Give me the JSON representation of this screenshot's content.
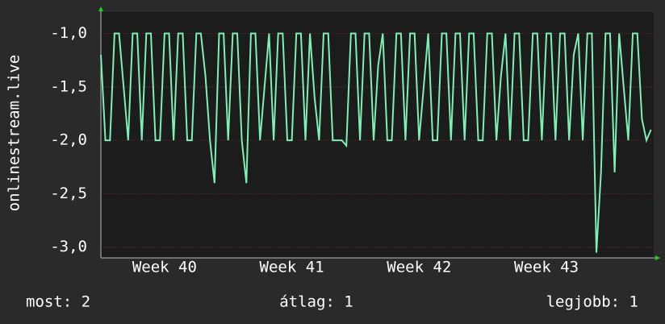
{
  "chart_data": {
    "type": "line",
    "y_label": "onlinestream.live",
    "x": [
      0,
      0.25,
      0.5,
      0.75,
      1,
      1.25,
      1.5,
      1.75,
      2,
      2.25,
      2.5,
      2.75,
      3,
      3.25,
      3.5,
      3.75,
      4,
      4.25,
      4.5,
      4.75,
      5,
      5.25,
      5.5,
      5.75,
      6,
      6.25,
      6.5,
      6.75,
      7,
      7.25,
      7.5,
      7.75,
      8,
      8.25,
      8.5,
      8.75,
      9,
      9.25,
      9.5,
      9.75,
      10,
      10.25,
      10.5,
      10.75,
      11,
      11.25,
      11.5,
      11.75,
      12,
      12.25,
      12.5,
      12.75,
      13,
      13.25,
      13.5,
      13.75,
      14,
      14.25,
      14.5,
      14.75,
      15,
      15.25,
      15.5,
      15.75,
      16,
      16.25,
      16.5,
      16.75,
      17,
      17.25,
      17.5,
      17.75,
      18,
      18.25,
      18.5,
      18.75,
      19,
      19.25,
      19.5,
      19.75,
      20,
      20.25,
      20.5,
      20.75,
      21,
      21.25,
      21.5,
      21.75,
      22,
      22.25,
      22.5,
      22.75,
      23,
      23.25,
      23.5,
      23.75,
      24,
      24.25,
      24.5,
      24.75,
      25,
      25.25,
      25.5,
      25.75,
      26,
      26.25,
      26.5,
      26.75,
      27,
      27.25,
      27.5,
      27.75,
      28,
      28.25,
      28.5,
      28.75,
      29,
      29.25,
      29.5,
      29.75,
      30,
      30.25
    ],
    "series": [
      {
        "color": "#7df0b4",
        "values": [
          -1.2,
          -2,
          -2,
          -1,
          -1,
          -1.5,
          -2,
          -1,
          -1,
          -2,
          -1,
          -1,
          -2,
          -2,
          -1,
          -1,
          -2,
          -1,
          -1,
          -2,
          -2,
          -1,
          -1,
          -1.4,
          -2,
          -2.4,
          -1,
          -1,
          -2,
          -1,
          -1,
          -2,
          -2.4,
          -1,
          -1,
          -2,
          -1.5,
          -1,
          -2,
          -1,
          -1,
          -2,
          -2,
          -1,
          -1,
          -2,
          -1,
          -1.6,
          -2,
          -1,
          -1,
          -2,
          -2,
          -2,
          -2.05,
          -1,
          -1,
          -2,
          -1,
          -1,
          -2,
          -1.3,
          -1,
          -2,
          -2,
          -1,
          -1,
          -2,
          -1,
          -1,
          -2,
          -1.5,
          -1,
          -2,
          -2,
          -1,
          -1,
          -2,
          -1,
          -1,
          -2,
          -1,
          -1,
          -2,
          -2,
          -1,
          -1,
          -2,
          -1.4,
          -1,
          -2,
          -1,
          -1,
          -2,
          -2,
          -1,
          -1,
          -2,
          -1,
          -1,
          -2,
          -1,
          -1,
          -2,
          -1.2,
          -1,
          -2,
          -1,
          -1,
          -3.05,
          -2.3,
          -1,
          -1,
          -2.3,
          -1,
          -1.5,
          -2,
          -1,
          -1,
          -1.8,
          -2,
          -1.9
        ]
      }
    ],
    "xlim": [
      0,
      30.4
    ],
    "xticks": [
      {
        "value": 3.5,
        "label": "Week 40"
      },
      {
        "value": 10.5,
        "label": "Week 41"
      },
      {
        "value": 17.5,
        "label": "Week 42"
      },
      {
        "value": 24.5,
        "label": "Week 43"
      }
    ],
    "ylim": [
      -3.1,
      -0.8
    ],
    "yticks": [
      {
        "value": -1.0,
        "label": "-1,0"
      },
      {
        "value": -1.5,
        "label": "-1,5"
      },
      {
        "value": -2.0,
        "label": "-2,0"
      },
      {
        "value": -2.5,
        "label": "-2,5"
      },
      {
        "value": -3.0,
        "label": "-3,0"
      }
    ],
    "grid": true,
    "footer": [
      "most: 2",
      "átlag: 1",
      "legjobb: 1"
    ]
  }
}
